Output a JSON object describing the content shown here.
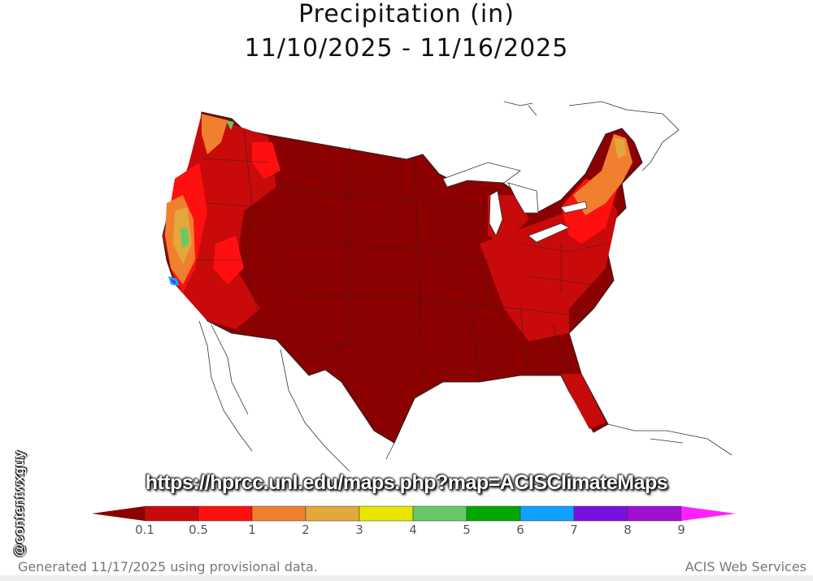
{
  "title": "Precipitation (in)",
  "date_range": "11/10/2025 - 11/16/2025",
  "url_overlay": "https://hprcc.unl.edu/maps.php?map=ACISClimateMaps",
  "watermark": "@contentwxguy",
  "legend": {
    "ticks": [
      "0.1",
      "0.5",
      "1",
      "2",
      "3",
      "4",
      "5",
      "6",
      "7",
      "8",
      "9"
    ],
    "colors": [
      "#8b0000",
      "#c80a0a",
      "#ff1010",
      "#f0802e",
      "#e2a83c",
      "#e8e600",
      "#66c866",
      "#00a800",
      "#10a0ff",
      "#7a10e0",
      "#a010d0",
      "#ff20ff"
    ]
  },
  "footer": {
    "generated": "Generated 11/17/2025 using provisional data.",
    "source": "ACIS Web Services"
  }
}
